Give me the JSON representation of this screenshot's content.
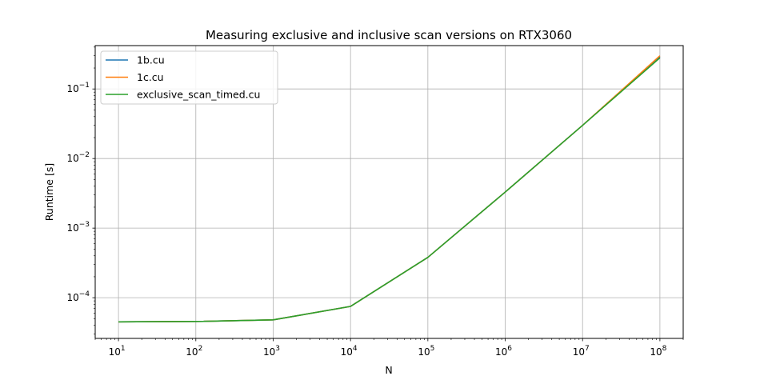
{
  "chart_data": {
    "type": "line",
    "title": "Measuring exclusive and inclusive scan versions on RTX3060",
    "xlabel": "N",
    "ylabel": "Runtime [s]",
    "xscale": "log",
    "yscale": "log",
    "xlim": [
      5,
      200000000
    ],
    "ylim": [
      2.6e-05,
      0.42
    ],
    "grid": true,
    "legend_position": "top-left",
    "x": [
      10,
      100,
      1000,
      10000,
      100000,
      1000000,
      10000000,
      100000000
    ],
    "x_ticks": [
      {
        "base": "10",
        "exp": "1",
        "value": 10
      },
      {
        "base": "10",
        "exp": "2",
        "value": 100
      },
      {
        "base": "10",
        "exp": "3",
        "value": 1000
      },
      {
        "base": "10",
        "exp": "4",
        "value": 10000
      },
      {
        "base": "10",
        "exp": "5",
        "value": 100000
      },
      {
        "base": "10",
        "exp": "6",
        "value": 1000000
      },
      {
        "base": "10",
        "exp": "7",
        "value": 10000000
      },
      {
        "base": "10",
        "exp": "8",
        "value": 100000000
      }
    ],
    "y_ticks": [
      {
        "base": "10",
        "exp": "−4",
        "value": 0.0001
      },
      {
        "base": "10",
        "exp": "−3",
        "value": 0.001
      },
      {
        "base": "10",
        "exp": "−2",
        "value": 0.01
      },
      {
        "base": "10",
        "exp": "−1",
        "value": 0.1
      }
    ],
    "series": [
      {
        "name": "1b.cu",
        "color": "#1f77b4",
        "values": [
          4.5e-05,
          4.55e-05,
          4.8e-05,
          7.5e-05,
          0.00038,
          0.0033,
          0.03,
          0.29
        ]
      },
      {
        "name": "1c.cu",
        "color": "#ff7f0e",
        "values": [
          4.5e-05,
          4.55e-05,
          4.8e-05,
          7.5e-05,
          0.00038,
          0.0033,
          0.03,
          0.3
        ]
      },
      {
        "name": "exclusive_scan_timed.cu",
        "color": "#2ca02c",
        "values": [
          4.5e-05,
          4.55e-05,
          4.8e-05,
          7.5e-05,
          0.00038,
          0.0033,
          0.03,
          0.28
        ]
      }
    ]
  }
}
